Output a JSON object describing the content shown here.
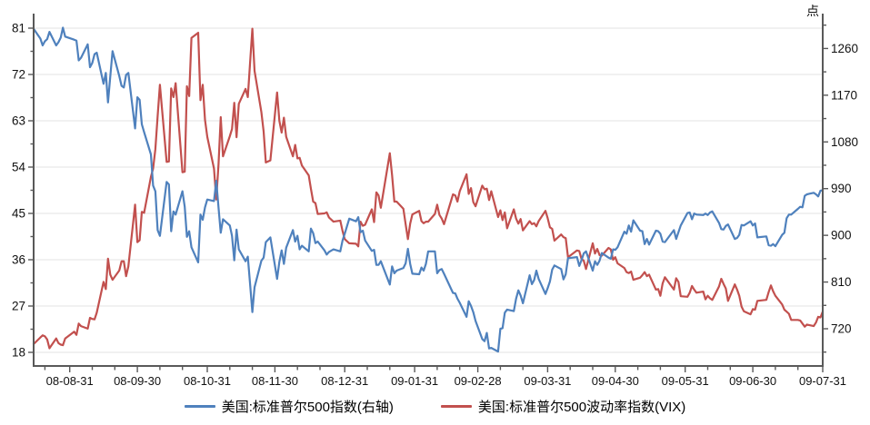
{
  "chart_data": {
    "type": "line",
    "style": {
      "grid": "#e3e3e3",
      "axis": "#595959",
      "tick_text": "#111111",
      "background": "#ffffff"
    },
    "left_axis": {
      "title": "",
      "min": 18,
      "max": 81,
      "ticks": [
        18,
        27,
        36,
        45,
        54,
        63,
        72,
        81
      ],
      "minor_step": 4.5
    },
    "right_axis": {
      "unit": "点",
      "min": 720,
      "max": 1260,
      "ticks": [
        720,
        810,
        900,
        990,
        1080,
        1170,
        1260
      ],
      "minor_step": 45
    },
    "x_axis": {
      "ticks": [
        {
          "date": "8-31",
          "label": "08-08-31"
        },
        {
          "date": "9-30",
          "label": "08-09-30"
        },
        {
          "date": "10-31",
          "label": "08-10-31"
        },
        {
          "date": "11-30",
          "label": "08-11-30"
        },
        {
          "date": "12-31",
          "label": "08-12-31"
        },
        {
          "date": "1-31",
          "label": "09-01-31"
        },
        {
          "date": "2-28",
          "label": "09-02-28"
        },
        {
          "date": "3-31",
          "label": "09-03-31"
        },
        {
          "date": "4-30",
          "label": "09-04-30"
        },
        {
          "date": "5-31",
          "label": "09-05-31"
        },
        {
          "date": "6-30",
          "label": "09-06-30"
        },
        {
          "date": "7-31",
          "label": "09-07-31"
        }
      ],
      "minor_days": [
        10,
        20
      ]
    },
    "dates": [
      "8-15",
      "8-18",
      "8-19",
      "8-20",
      "8-21",
      "8-22",
      "8-25",
      "8-26",
      "8-27",
      "8-28",
      "8-29",
      "9-2",
      "9-3",
      "9-4",
      "9-5",
      "9-8",
      "9-9",
      "9-10",
      "9-11",
      "9-12",
      "9-15",
      "9-16",
      "9-17",
      "9-18",
      "9-19",
      "9-22",
      "9-23",
      "9-24",
      "9-25",
      "9-26",
      "9-29",
      "9-30",
      "10-1",
      "10-2",
      "10-3",
      "10-6",
      "10-7",
      "10-8",
      "10-9",
      "10-10",
      "10-13",
      "10-14",
      "10-15",
      "10-16",
      "10-17",
      "10-20",
      "10-21",
      "10-22",
      "10-23",
      "10-24",
      "10-27",
      "10-28",
      "10-29",
      "10-30",
      "10-31",
      "11-3",
      "11-4",
      "11-5",
      "11-6",
      "11-7",
      "11-10",
      "11-11",
      "11-12",
      "11-13",
      "11-14",
      "11-17",
      "11-18",
      "11-19",
      "11-20",
      "11-21",
      "11-24",
      "11-25",
      "11-26",
      "11-28",
      "12-1",
      "12-2",
      "12-3",
      "12-4",
      "12-5",
      "12-8",
      "12-9",
      "12-10",
      "12-11",
      "12-12",
      "12-15",
      "12-16",
      "12-17",
      "12-18",
      "12-19",
      "12-22",
      "12-23",
      "12-24",
      "12-26",
      "12-29",
      "12-30",
      "12-31",
      "1-2",
      "1-5",
      "1-6",
      "1-7",
      "1-8",
      "1-9",
      "1-12",
      "1-13",
      "1-14",
      "1-15",
      "1-16",
      "1-20",
      "1-21",
      "1-22",
      "1-23",
      "1-26",
      "1-27",
      "1-28",
      "1-29",
      "1-30",
      "2-2",
      "2-3",
      "2-4",
      "2-5",
      "2-6",
      "2-9",
      "2-10",
      "2-11",
      "2-12",
      "2-13",
      "2-17",
      "2-18",
      "2-19",
      "2-20",
      "2-23",
      "2-24",
      "2-25",
      "2-26",
      "2-27",
      "3-2",
      "3-3",
      "3-4",
      "3-5",
      "3-6",
      "3-9",
      "3-10",
      "3-11",
      "3-12",
      "3-13",
      "3-16",
      "3-17",
      "3-18",
      "3-19",
      "3-20",
      "3-23",
      "3-24",
      "3-25",
      "3-26",
      "3-27",
      "3-30",
      "3-31",
      "4-1",
      "4-2",
      "4-3",
      "4-6",
      "4-7",
      "4-8",
      "4-9",
      "4-13",
      "4-14",
      "4-15",
      "4-16",
      "4-17",
      "4-20",
      "4-21",
      "4-22",
      "4-23",
      "4-24",
      "4-27",
      "4-28",
      "4-29",
      "4-30",
      "5-1",
      "5-4",
      "5-5",
      "5-6",
      "5-7",
      "5-8",
      "5-11",
      "5-12",
      "5-13",
      "5-14",
      "5-15",
      "5-18",
      "5-19",
      "5-20",
      "5-21",
      "5-22",
      "5-26",
      "5-27",
      "5-28",
      "5-29",
      "6-1",
      "6-2",
      "6-3",
      "6-4",
      "6-5",
      "6-8",
      "6-9",
      "6-10",
      "6-11",
      "6-12",
      "6-15",
      "6-16",
      "6-17",
      "6-18",
      "6-19",
      "6-22",
      "6-23",
      "6-24",
      "6-25",
      "6-26",
      "6-29",
      "6-30",
      "7-1",
      "7-2",
      "7-6",
      "7-7",
      "7-8",
      "7-9",
      "7-10",
      "7-13",
      "7-14",
      "7-15",
      "7-16",
      "7-17",
      "7-20",
      "7-21",
      "7-22",
      "7-23",
      "7-24",
      "7-27",
      "7-28",
      "7-29",
      "7-30",
      "7-31"
    ],
    "series": [
      {
        "id": "vix",
        "name": "美国:标准普尔500波动率指数(VIX)",
        "axis": "left",
        "color": "#c2504e",
        "values": [
          19.6,
          20.9,
          21.3,
          21.1,
          20.5,
          18.8,
          20.7,
          19.8,
          19.5,
          19.4,
          20.7,
          22.0,
          21.4,
          23.6,
          23.1,
          22.6,
          24.7,
          24.5,
          24.4,
          25.7,
          31.7,
          30.3,
          36.2,
          33.1,
          32.1,
          33.9,
          35.7,
          35.7,
          32.8,
          34.7,
          46.7,
          39.4,
          39.8,
          45.3,
          45.1,
          52.1,
          53.7,
          57.5,
          63.9,
          70.0,
          55.0,
          55.1,
          69.3,
          67.6,
          70.3,
          53.0,
          53.1,
          69.7,
          67.8,
          79.1,
          80.1,
          67.0,
          70.0,
          63.2,
          59.9,
          53.7,
          47.7,
          54.6,
          63.7,
          56.1,
          60.0,
          61.4,
          66.5,
          59.8,
          66.3,
          69.2,
          67.6,
          74.3,
          80.9,
          72.7,
          64.7,
          60.9,
          54.9,
          55.3,
          68.5,
          63.0,
          60.7,
          63.6,
          59.9,
          56.1,
          58.3,
          55.7,
          55.8,
          54.3,
          52.4,
          49.8,
          47.3,
          47.0,
          44.9,
          45.0,
          45.2,
          44.2,
          43.4,
          43.6,
          41.6,
          40.0,
          39.2,
          39.1,
          38.6,
          43.4,
          42.6,
          42.8,
          45.8,
          43.3,
          49.1,
          48.5,
          46.1,
          56.7,
          52.4,
          47.3,
          47.3,
          45.9,
          42.9,
          40.0,
          43.0,
          44.8,
          45.5,
          43.5,
          43.1,
          43.4,
          43.4,
          44.9,
          46.7,
          44.7,
          44.0,
          42.9,
          48.7,
          48.5,
          47.3,
          49.3,
          52.6,
          48.8,
          49.9,
          47.2,
          46.4,
          50.4,
          49.7,
          49.8,
          47.6,
          49.3,
          44.3,
          45.6,
          43.7,
          45.2,
          42.1,
          45.8,
          44.0,
          43.0,
          43.9,
          41.7,
          43.5,
          42.9,
          43.1,
          42.5,
          43.5,
          45.5,
          44.1,
          42.3,
          42.0,
          39.7,
          40.9,
          40.4,
          40.2,
          36.5,
          37.8,
          37.7,
          36.2,
          35.8,
          34.2,
          39.2,
          37.2,
          38.1,
          36.9,
          36.8,
          38.3,
          38.0,
          36.0,
          36.5,
          35.3,
          34.4,
          33.6,
          33.4,
          33.7,
          32.1,
          32.5,
          33.0,
          33.6,
          32.8,
          33.1,
          30.2,
          30.3,
          29.0,
          31.4,
          32.6,
          30.2,
          32.4,
          31.7,
          28.9,
          28.8,
          29.6,
          30.9,
          30.2,
          29.6,
          29.8,
          28.3,
          29.0,
          28.5,
          28.2,
          30.8,
          32.3,
          31.3,
          30.4,
          28.0,
          31.2,
          30.2,
          29.0,
          26.9,
          26.0,
          25.4,
          26.4,
          26.3,
          28.0,
          28.2,
          29.7,
          31.0,
          29.9,
          29.0,
          27.3,
          26.3,
          25.9,
          25.5,
          24.3,
          24.3,
          24.2,
          23.6,
          23.0,
          23.4,
          23.1,
          23.8,
          24.9,
          24.8,
          25.9
        ]
      },
      {
        "id": "spx",
        "name": "美国:标准普尔500指数(右轴)",
        "axis": "right",
        "color": "#4f81bd",
        "values": [
          1298,
          1279,
          1266,
          1274,
          1278,
          1292,
          1266,
          1272,
          1281,
          1300,
          1283,
          1277,
          1275,
          1237,
          1242,
          1268,
          1224,
          1232,
          1249,
          1252,
          1192,
          1213,
          1156,
          1206,
          1255,
          1207,
          1188,
          1185,
          1209,
          1213,
          1106,
          1166,
          1161,
          1114,
          1099,
          1056,
          996,
          985,
          910,
          899,
          1003,
          998,
          908,
          946,
          940,
          985,
          955,
          897,
          908,
          877,
          848,
          940,
          930,
          954,
          969,
          966,
          1005,
          953,
          905,
          931,
          919,
          899,
          852,
          911,
          873,
          850,
          859,
          806,
          752,
          800,
          851,
          857,
          887,
          896,
          816,
          849,
          871,
          845,
          876,
          910,
          888,
          899,
          873,
          880,
          869,
          913,
          904,
          885,
          888,
          871,
          863,
          868,
          873,
          869,
          890,
          903,
          932,
          927,
          935,
          906,
          909,
          890,
          870,
          872,
          843,
          843,
          850,
          805,
          840,
          827,
          832,
          837,
          846,
          874,
          845,
          826,
          825,
          838,
          832,
          845,
          869,
          869,
          827,
          833,
          835,
          826,
          789,
          788,
          778,
          770,
          743,
          773,
          764,
          752,
          735,
          700,
          696,
          712,
          682,
          683,
          676,
          720,
          721,
          751,
          757,
          754,
          778,
          794,
          784,
          769,
          823,
          806,
          814,
          832,
          816,
          787,
          798,
          811,
          834,
          842,
          835,
          815,
          825,
          856,
          858,
          841,
          852,
          865,
          869,
          832,
          850,
          843,
          851,
          866,
          857,
          855,
          873,
          872,
          877,
          907,
          903,
          919,
          907,
          929,
          909,
          908,
          883,
          893,
          882,
          909,
          908,
          903,
          888,
          887,
          910,
          893,
          906,
          919,
          943,
          944,
          931,
          942,
          940,
          939,
          942,
          939,
          944,
          946,
          924,
          912,
          911,
          918,
          921,
          893,
          895,
          901,
          920,
          919,
          927,
          919,
          923,
          896,
          898,
          881,
          880,
          883,
          879,
          901,
          905,
          933,
          940,
          940,
          951,
          955,
          954,
          976,
          979,
          982,
          979,
          975,
          986,
          987
        ]
      }
    ]
  }
}
